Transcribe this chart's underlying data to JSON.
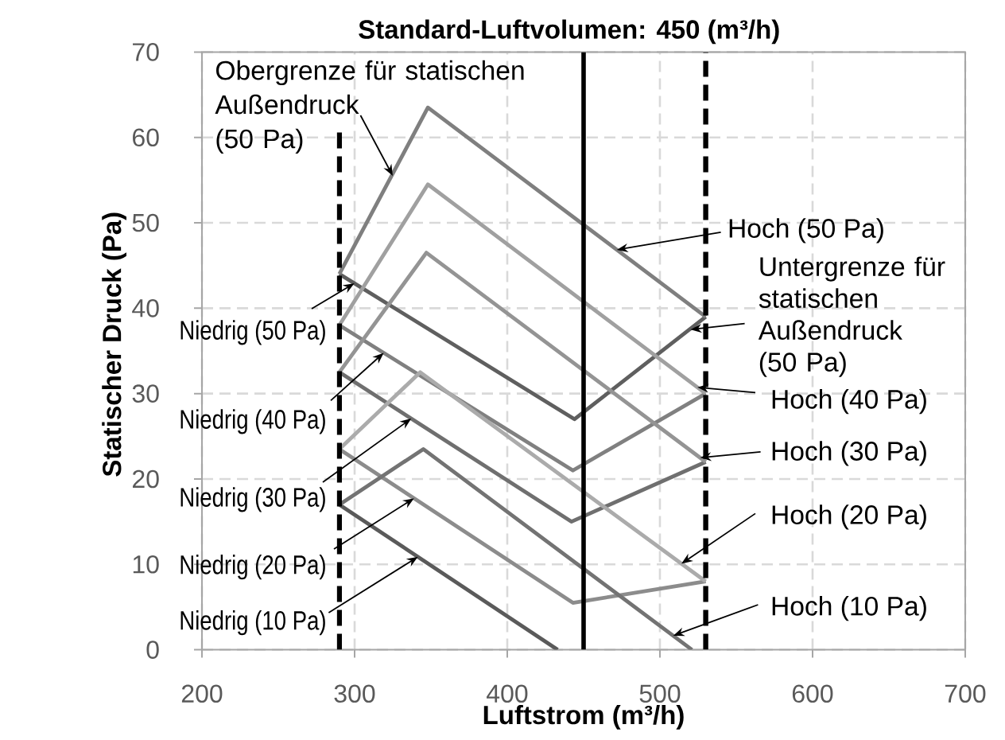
{
  "chart_data": {
    "type": "line",
    "title": "Standard-Luftvolumen: 450 (m³/h)",
    "xlabel": "Luftstrom (m³/h)",
    "ylabel": "Statischer Druck (Pa)",
    "xlim": [
      200,
      700
    ],
    "ylim": [
      0,
      70
    ],
    "xticks": [
      200,
      300,
      400,
      500,
      600,
      700
    ],
    "yticks": [
      0,
      10,
      20,
      30,
      40,
      50,
      60,
      70
    ],
    "grid": true,
    "series": [
      {
        "name": "Niedrig (50 Pa)",
        "color": "#5f5f5f",
        "x": [
          290,
          444,
          530
        ],
        "values": [
          44,
          27,
          39
        ]
      },
      {
        "name": "Hoch (50 Pa)",
        "color": "#7f7f7f",
        "x": [
          290,
          348,
          530
        ],
        "values": [
          44,
          63.5,
          39
        ]
      },
      {
        "name": "Niedrig (40 Pa)",
        "color": "#808080",
        "x": [
          290,
          443,
          530
        ],
        "values": [
          38,
          21,
          30
        ]
      },
      {
        "name": "Hoch (40 Pa)",
        "color": "#a0a0a0",
        "x": [
          290,
          348,
          530
        ],
        "values": [
          38,
          54.5,
          30
        ]
      },
      {
        "name": "Niedrig (30 Pa)",
        "color": "#6f6f6f",
        "x": [
          290,
          442,
          530
        ],
        "values": [
          32.5,
          15,
          22
        ]
      },
      {
        "name": "Hoch (30 Pa)",
        "color": "#949494",
        "x": [
          290,
          347,
          530
        ],
        "values": [
          32.5,
          46.5,
          22
        ]
      },
      {
        "name": "Niedrig (20 Pa)",
        "color": "#8c8c8c",
        "x": [
          290,
          443,
          530
        ],
        "values": [
          23.5,
          5.5,
          8
        ]
      },
      {
        "name": "Hoch (20 Pa)",
        "color": "#ababab",
        "x": [
          290,
          343,
          530
        ],
        "values": [
          23.5,
          32.5,
          8
        ]
      },
      {
        "name": "Niedrig (10 Pa)",
        "color": "#5a5a5a",
        "x": [
          290,
          433
        ],
        "values": [
          17,
          0
        ]
      },
      {
        "name": "Hoch (10 Pa)",
        "color": "#737373",
        "x": [
          290,
          345,
          521
        ],
        "values": [
          17,
          23.5,
          0
        ]
      }
    ],
    "ref_lines": [
      {
        "axis": "x",
        "value": 290,
        "color": "#000000",
        "line_style": "dashed"
      },
      {
        "axis": "x",
        "value": 450,
        "color": "#000000",
        "line_style": "solid"
      },
      {
        "axis": "x",
        "value": 530,
        "color": "#000000",
        "line_style": "dashed"
      }
    ],
    "annotations": [
      {
        "text": "Obergrenze für statischen Außendruck (50 Pa)",
        "x": 325,
        "y": 55.5
      },
      {
        "text": "Untergrenze für statischen Außendruck (50 Pa)",
        "x": 520,
        "y": 37.5
      }
    ]
  }
}
